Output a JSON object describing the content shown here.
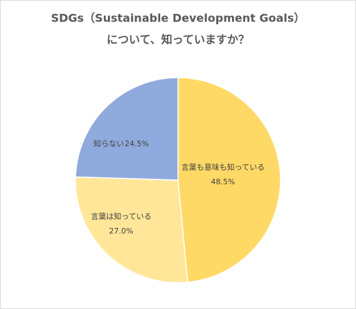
{
  "chart_data": {
    "type": "pie",
    "title": [
      "SDGs（Sustainable Development Goals）",
      "について、知っていますか？"
    ],
    "categories": [
      "言葉も意味も知っている",
      "言葉は知っている",
      "知らない"
    ],
    "values": [
      48.5,
      27.0,
      24.5
    ],
    "value_labels": [
      "48.5%",
      "27.0%",
      "24.5%"
    ],
    "colors": [
      "#ffd966",
      "#ffe699",
      "#8faadc"
    ]
  }
}
